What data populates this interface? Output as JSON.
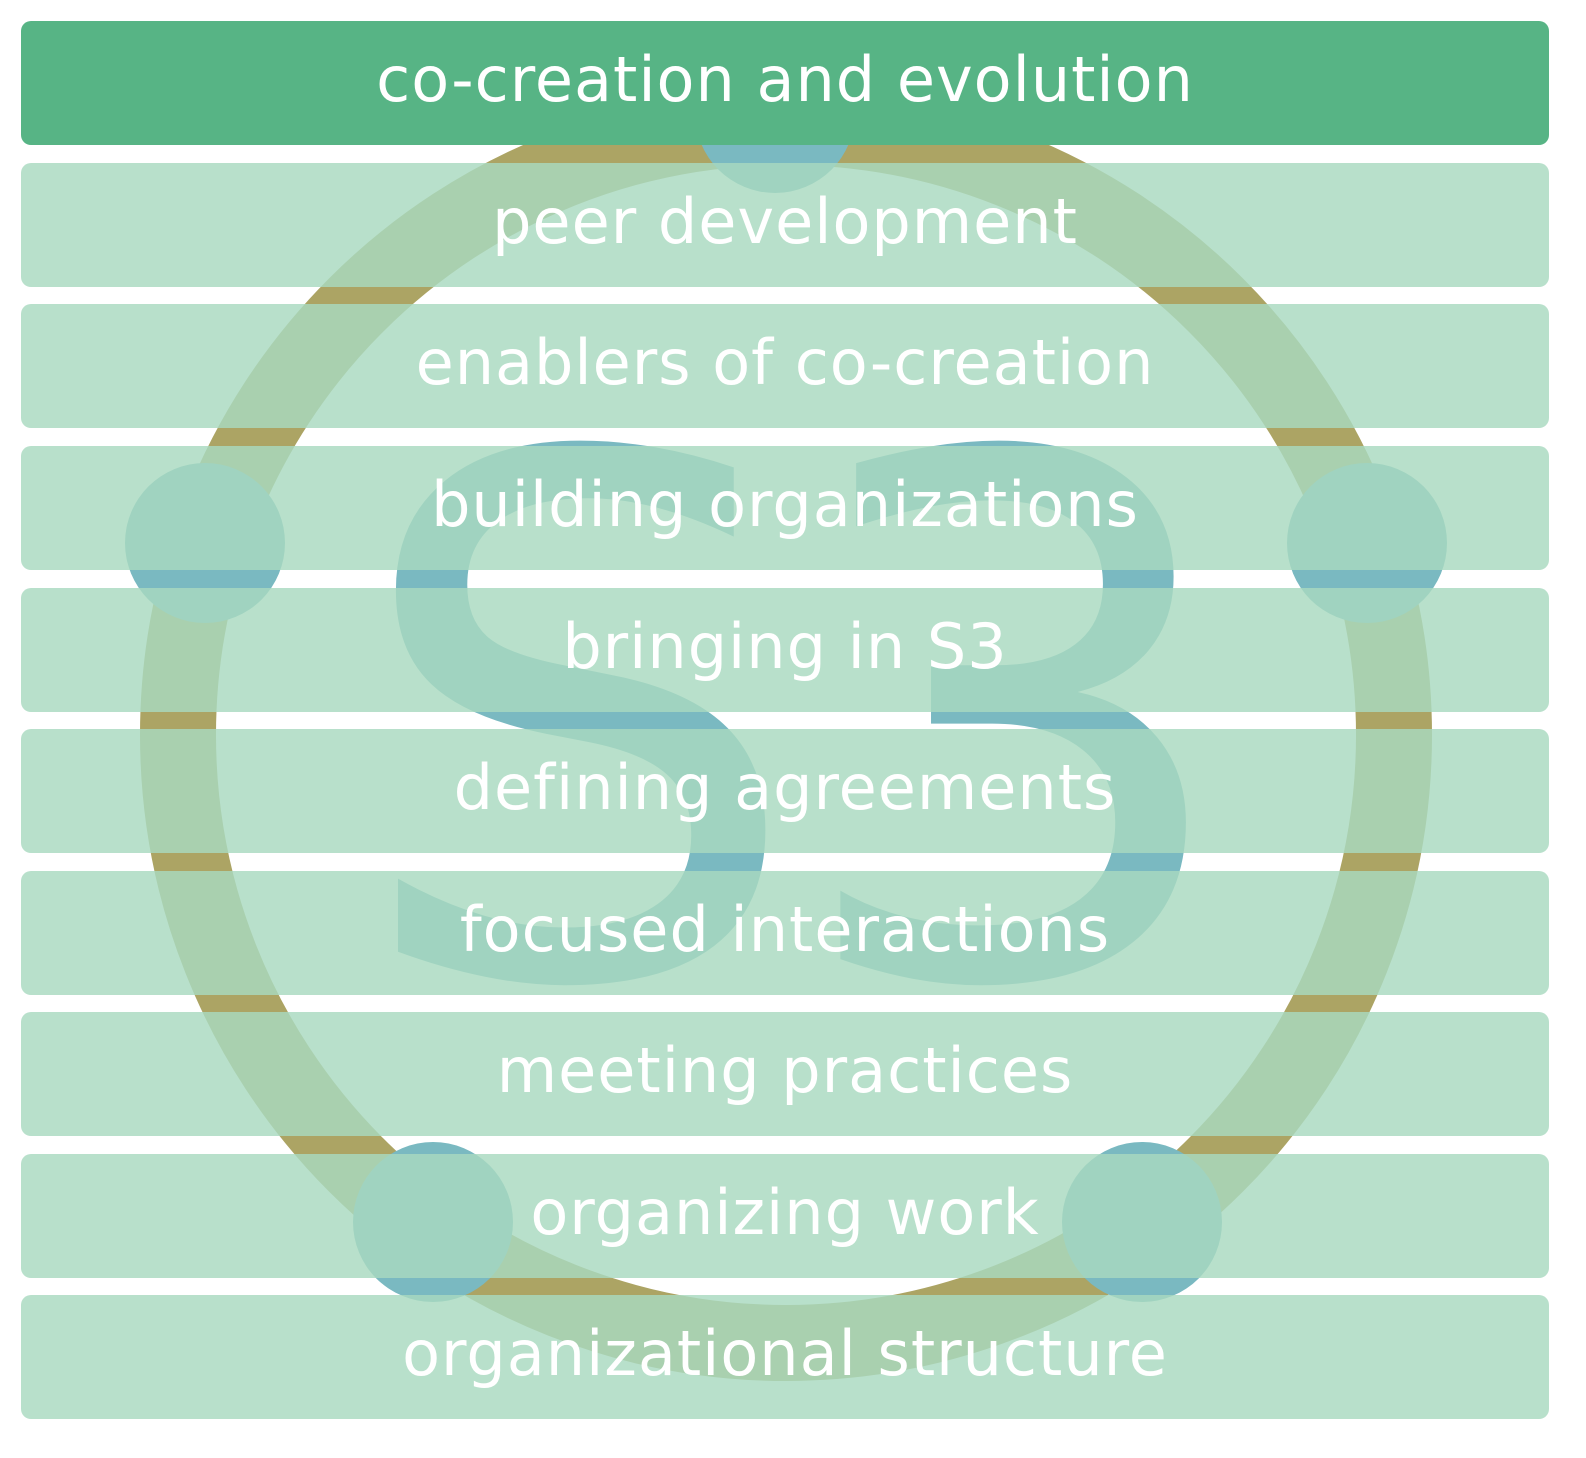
{
  "colors": {
    "active_bar": "#57b485",
    "bar": "#a8d9c0",
    "ring": "#aca464",
    "logo_blue": "#7ab9c1",
    "text": "#ffffff"
  },
  "logo": {
    "mark_text": "S3",
    "description_icon": "s3-ring-logo"
  },
  "bars": [
    {
      "label": "co-creation and evolution",
      "active": true
    },
    {
      "label": "peer development",
      "active": false
    },
    {
      "label": "enablers of co-creation",
      "active": false
    },
    {
      "label": "building organizations",
      "active": false
    },
    {
      "label": "bringing in S3",
      "active": false
    },
    {
      "label": "defining agreements",
      "active": false
    },
    {
      "label": "focused interactions",
      "active": false
    },
    {
      "label": "meeting practices",
      "active": false
    },
    {
      "label": "organizing work",
      "active": false
    },
    {
      "label": "organizational structure",
      "active": false
    }
  ]
}
